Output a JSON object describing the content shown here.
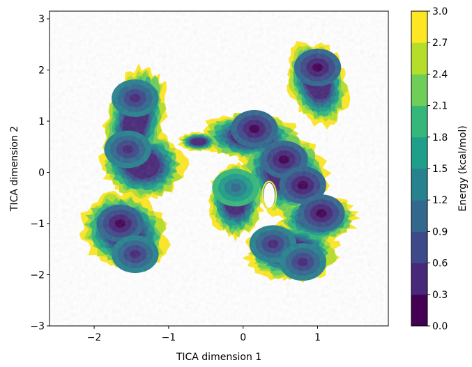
{
  "chart_data": {
    "type": "heatmap",
    "title": "",
    "xlabel": "TICA dimension 1",
    "ylabel": "TICA dimension 2",
    "xlim": [
      -2.6,
      1.95
    ],
    "ylim": [
      -3.0,
      3.15
    ],
    "xticks": [
      -2,
      -1,
      0,
      1
    ],
    "xtick_labels": [
      "−2",
      "−1",
      "0",
      "1"
    ],
    "yticks": [
      -3,
      -2,
      -1,
      0,
      1,
      2,
      3
    ],
    "ytick_labels": [
      "−3",
      "−2",
      "−1",
      "0",
      "1",
      "2",
      "3"
    ],
    "grid": false,
    "colorbar": {
      "label": "Energy (kcal/mol)",
      "range": [
        0.0,
        3.0
      ],
      "levels": [
        0.0,
        0.3,
        0.6,
        0.9,
        1.2,
        1.5,
        1.8,
        2.1,
        2.4,
        2.7,
        3.0
      ],
      "tick_labels": [
        "0.0",
        "0.3",
        "0.6",
        "0.9",
        "1.2",
        "1.5",
        "1.8",
        "2.1",
        "2.4",
        "2.7",
        "3.0"
      ],
      "colors": [
        "#440154",
        "#482878",
        "#3e4989",
        "#31688e",
        "#26828e",
        "#1f9e89",
        "#35b779",
        "#6ece58",
        "#b5de2b",
        "#fde725"
      ]
    },
    "basins": [
      {
        "x": -1.45,
        "y": 1.45,
        "energy": 0.6
      },
      {
        "x": -1.55,
        "y": 0.45,
        "energy": 0.6
      },
      {
        "x": -1.65,
        "y": -1.0,
        "energy": 0.2
      },
      {
        "x": -1.45,
        "y": -1.6,
        "energy": 0.6
      },
      {
        "x": 0.15,
        "y": 0.85,
        "energy": 0.0
      },
      {
        "x": 0.55,
        "y": 0.25,
        "energy": 0.3
      },
      {
        "x": 0.8,
        "y": -0.25,
        "energy": 0.1
      },
      {
        "x": 1.0,
        "y": 2.05,
        "energy": 0.3
      },
      {
        "x": 1.05,
        "y": -0.8,
        "energy": 0.3
      },
      {
        "x": 0.4,
        "y": -1.4,
        "energy": 0.6
      },
      {
        "x": 0.8,
        "y": -1.75,
        "energy": 0.5
      },
      {
        "x": -0.1,
        "y": -0.3,
        "energy": 1.0
      }
    ]
  }
}
